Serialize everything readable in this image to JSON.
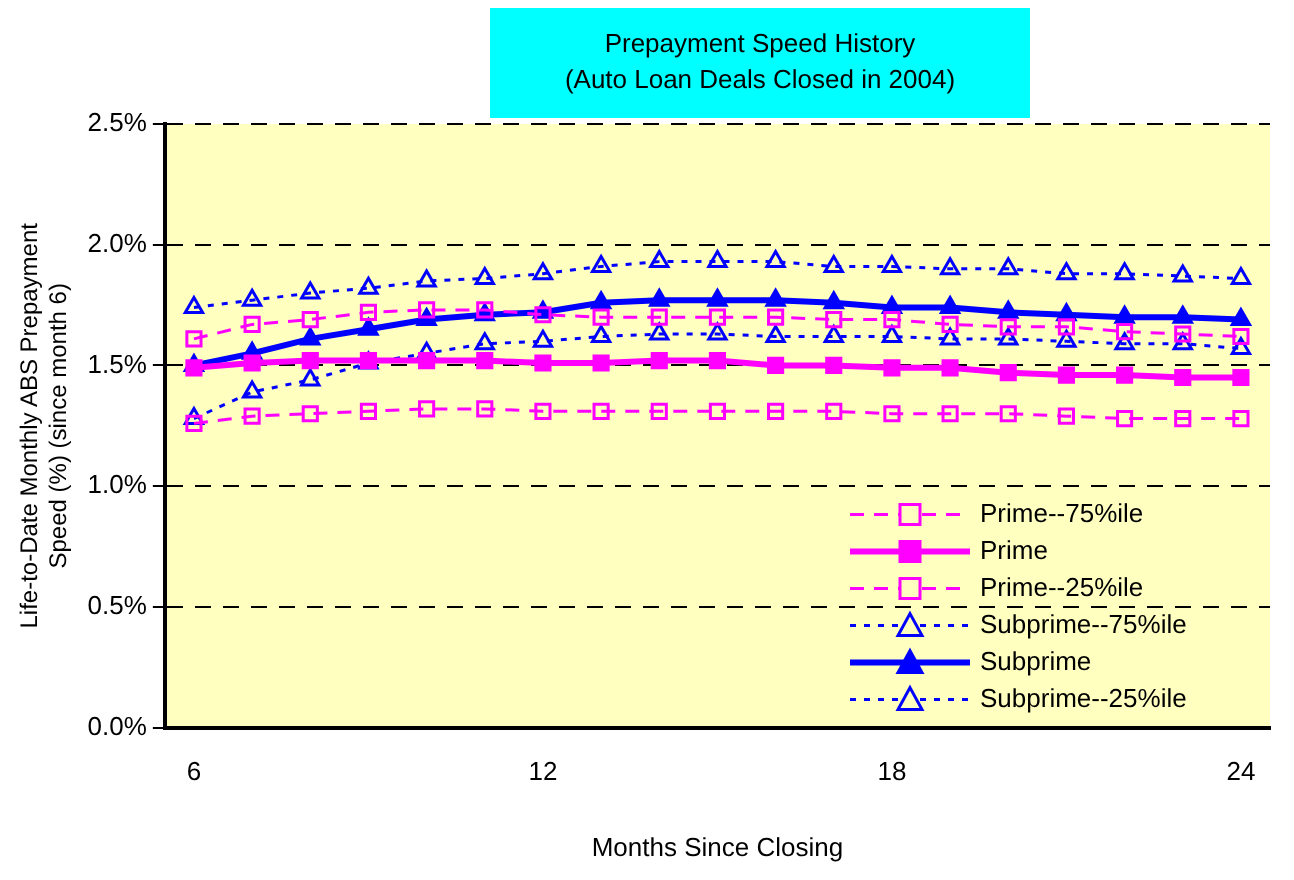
{
  "chart_data": {
    "type": "line",
    "title": "Prepayment Speed History",
    "subtitle": "(Auto Loan Deals Closed in 2004)",
    "xlabel": "Months Since Closing",
    "ylabel": "Life-to-Date Monthly ABS Prepayment Speed (%) (since month 6)",
    "categories": [
      "6",
      null,
      null,
      null,
      null,
      null,
      "12",
      null,
      null,
      null,
      null,
      null,
      "18",
      null,
      null,
      null,
      null,
      null,
      "24"
    ],
    "ylim": [
      0,
      2.5
    ],
    "yticks": [
      {
        "value": 0,
        "label": "0.0%"
      },
      {
        "value": 0.5,
        "label": "0.5%"
      },
      {
        "value": 1,
        "label": "1.0%"
      },
      {
        "value": 1.5,
        "label": "1.5%"
      },
      {
        "value": 2,
        "label": "2.0%"
      },
      {
        "value": 2.5,
        "label": "2.5%"
      }
    ],
    "grid": "y",
    "legend": "bottom right",
    "series": [
      {
        "name": "Prime--75%ile",
        "color": "#ff00ff",
        "marker": "square",
        "line_style": "dashed",
        "values": [
          1.61,
          1.67,
          1.69,
          1.72,
          1.73,
          1.73,
          1.71,
          1.7,
          1.7,
          1.7,
          1.7,
          1.69,
          1.69,
          1.67,
          1.66,
          1.66,
          1.64,
          1.63,
          1.62
        ]
      },
      {
        "name": "Prime",
        "color": "#ff00ff",
        "marker": "square",
        "line_style": "solid",
        "values": [
          1.49,
          1.51,
          1.52,
          1.52,
          1.52,
          1.52,
          1.51,
          1.51,
          1.52,
          1.52,
          1.5,
          1.5,
          1.49,
          1.49,
          1.47,
          1.46,
          1.46,
          1.45,
          1.45
        ]
      },
      {
        "name": "Prime--25%ile",
        "color": "#ff00ff",
        "marker": "square",
        "line_style": "dashed",
        "values": [
          1.26,
          1.29,
          1.3,
          1.31,
          1.32,
          1.32,
          1.31,
          1.31,
          1.31,
          1.31,
          1.31,
          1.31,
          1.3,
          1.3,
          1.3,
          1.29,
          1.28,
          1.28,
          1.28
        ]
      },
      {
        "name": "Subprime--75%ile",
        "color": "#0000ff",
        "marker": "triangle",
        "line_style": "dotted",
        "values": [
          1.74,
          1.77,
          1.8,
          1.82,
          1.85,
          1.86,
          1.88,
          1.91,
          1.93,
          1.93,
          1.93,
          1.91,
          1.91,
          1.9,
          1.9,
          1.88,
          1.88,
          1.87,
          1.86
        ]
      },
      {
        "name": "Subprime",
        "color": "#0000ff",
        "marker": "triangle",
        "line_style": "solid",
        "values": [
          1.5,
          1.55,
          1.61,
          1.65,
          1.69,
          1.71,
          1.72,
          1.76,
          1.77,
          1.77,
          1.77,
          1.76,
          1.74,
          1.74,
          1.72,
          1.71,
          1.7,
          1.7,
          1.69
        ]
      },
      {
        "name": "Subprime--25%ile",
        "color": "#0000ff",
        "marker": "triangle",
        "line_style": "dotted",
        "values": [
          1.28,
          1.39,
          1.44,
          1.51,
          1.55,
          1.59,
          1.6,
          1.62,
          1.63,
          1.63,
          1.62,
          1.62,
          1.62,
          1.61,
          1.61,
          1.6,
          1.59,
          1.59,
          1.57
        ]
      }
    ]
  }
}
